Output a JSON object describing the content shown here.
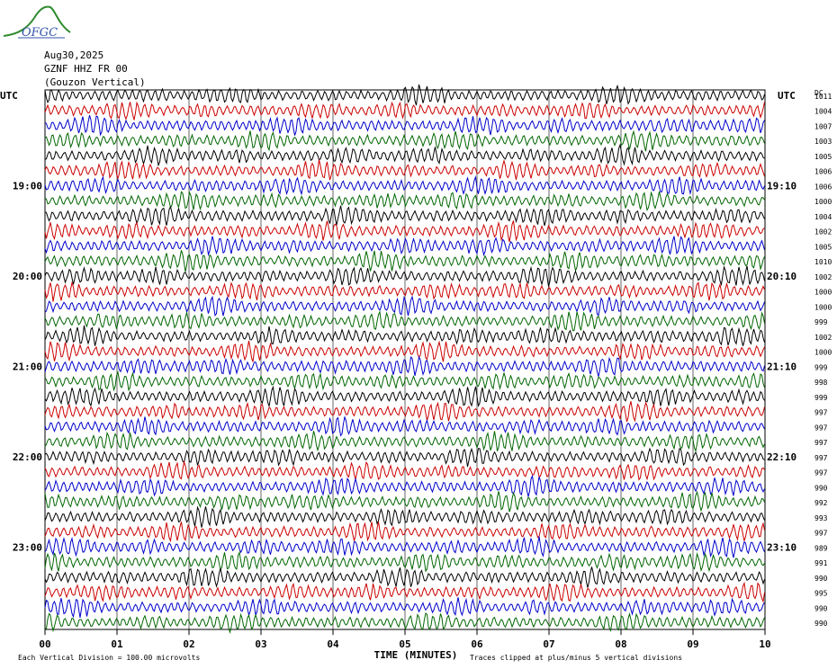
{
  "header": {
    "logo_text": "OFGC",
    "date": "Aug30,2025",
    "station": "GZNF HHZ FR 00",
    "station_name": "(Gouzon Vertical)"
  },
  "labels": {
    "left_tz": "UTC",
    "right_tz": "UTC",
    "right_col_header": "DC"
  },
  "footer": {
    "scale_note": "Each Vertical Division =  100.00 microvolts",
    "x_title": "TIME (MINUTES)",
    "clip_note": "Traces clipped at plus/minus 5 vertical divisions"
  },
  "colors": {
    "trace_cycle": [
      "#000000",
      "#cc0000",
      "#0000cc",
      "#006600"
    ],
    "grid": "#000000",
    "logo_green": "#2e8b2e",
    "logo_blue": "#3355aa"
  },
  "chart_data": {
    "type": "line",
    "description_hidden": true,
    "x_ticks": [
      "00",
      "01",
      "02",
      "03",
      "04",
      "05",
      "06",
      "07",
      "08",
      "09",
      "10"
    ],
    "xlim": [
      0,
      10
    ],
    "rows_per_hour": 6,
    "left_hour_labels": [
      "19:00",
      "20:00",
      "21:00",
      "22:00",
      "23:00"
    ],
    "left_hour_label_rows": [
      6,
      12,
      18,
      24,
      30
    ],
    "right_time_labels": [
      "19:10",
      "20:10",
      "21:10",
      "22:10",
      "23:10"
    ],
    "right_time_label_rows": [
      6,
      12,
      18,
      24,
      30
    ],
    "dc_offsets": [
      "1011",
      "1004",
      "1007",
      "1003",
      "1005",
      "1006",
      "1006",
      "1000",
      "1004",
      "1002",
      "1005",
      "1010",
      "1002",
      "1000",
      "1000",
      "999",
      "1002",
      "1000",
      "999",
      "998",
      "999",
      "997",
      "997",
      "997",
      "997",
      "997",
      "990",
      "992",
      "993",
      "997",
      "989",
      "991",
      "990",
      "995",
      "990",
      "990"
    ],
    "amplitude_divisions": 0.35
  }
}
